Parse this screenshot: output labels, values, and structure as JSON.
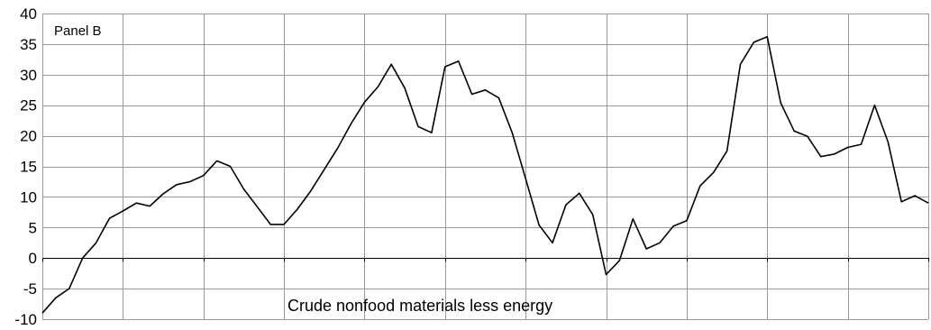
{
  "chart_data": {
    "type": "line",
    "panel_label": "Panel B",
    "series_label": "Crude nonfood materials less energy",
    "ylim": [
      -10,
      40
    ],
    "yticks": [
      40,
      35,
      30,
      25,
      20,
      15,
      10,
      5,
      0,
      -5,
      -10
    ],
    "ytick_labels": [
      "40",
      "35",
      "30",
      "25",
      "20",
      "15",
      "10",
      "5",
      "0",
      "-5",
      "-10"
    ],
    "x_gridline_count": 11,
    "grid": true,
    "series": [
      {
        "values": [
          -9,
          -6.5,
          -5,
          0,
          2.5,
          6.5,
          7.7,
          9,
          8.5,
          10.5,
          12,
          12.5,
          13.5,
          15.9,
          15,
          11.3,
          8.4,
          5.5,
          5.5,
          8,
          11,
          14.5,
          18,
          22,
          25.5,
          28,
          31.7,
          27.8,
          21.5,
          20.5,
          31.3,
          32.2,
          26.8,
          27.5,
          26.2,
          20.5,
          13,
          5.4,
          2.5,
          8.7,
          10.6,
          7.1,
          -2.7,
          -0.4,
          6.4,
          1.5,
          2.5,
          5.2,
          6.1,
          11.8,
          14,
          17.5,
          31.7,
          35.3,
          36.2,
          25.4,
          20.8,
          19.9,
          16.6,
          17,
          18.1,
          18.6,
          25,
          19,
          9.2,
          10.2,
          9
        ]
      }
    ]
  }
}
